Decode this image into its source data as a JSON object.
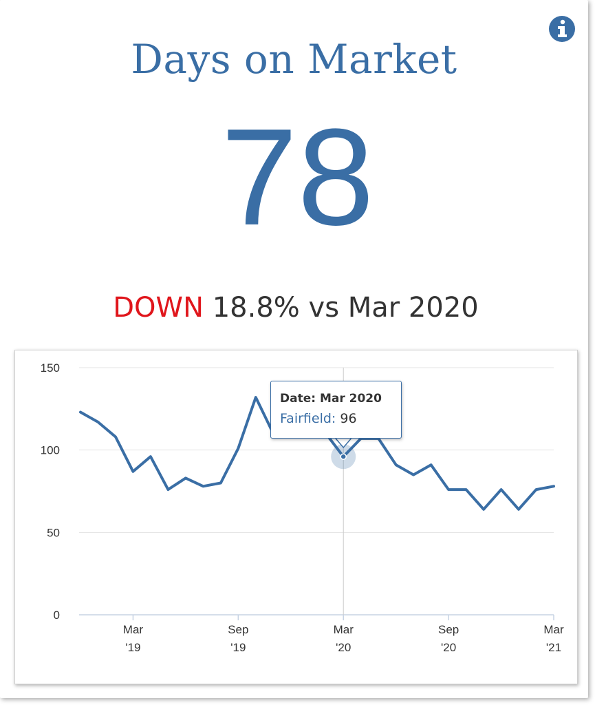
{
  "header": {
    "title": "Days on Market",
    "info_icon": "info-circle-icon"
  },
  "metric": {
    "value": "78",
    "direction": "DOWN",
    "change_text": "18.8% vs Mar 2020"
  },
  "colors": {
    "accent": "#3a6ea5",
    "down": "#e0161c",
    "text": "#333333",
    "grid": "#e3e3e3"
  },
  "tooltip": {
    "date_label": "Date: Mar 2020",
    "series_label": "Fairfield:",
    "value": "96"
  },
  "chart_data": {
    "type": "line",
    "x_tick_labels": [
      {
        "month": "Mar",
        "year": "'19"
      },
      {
        "month": "Sep",
        "year": "'19"
      },
      {
        "month": "Mar",
        "year": "'20"
      },
      {
        "month": "Sep",
        "year": "'20"
      },
      {
        "month": "Mar",
        "year": "'21"
      }
    ],
    "x_ticks": [
      "2019-03",
      "2019-09",
      "2020-03",
      "2020-09",
      "2021-03"
    ],
    "y_ticks": [
      0,
      50,
      100,
      150
    ],
    "ylim": [
      0,
      150
    ],
    "xlim": [
      "2018-12",
      "2021-03"
    ],
    "grid": true,
    "series": [
      {
        "name": "Fairfield",
        "x": [
          "2018-12",
          "2019-01",
          "2019-02",
          "2019-03",
          "2019-04",
          "2019-05",
          "2019-06",
          "2019-07",
          "2019-08",
          "2019-09",
          "2019-10",
          "2019-11",
          "2019-12",
          "2020-01",
          "2020-02",
          "2020-03",
          "2020-04",
          "2020-05",
          "2020-06",
          "2020-07",
          "2020-08",
          "2020-09",
          "2020-10",
          "2020-11",
          "2020-12",
          "2021-01",
          "2021-02",
          "2021-03"
        ],
        "values": [
          123,
          117,
          108,
          87,
          96,
          76,
          83,
          78,
          80,
          101,
          132,
          110,
          115,
          108,
          110,
          96,
          107,
          107,
          91,
          85,
          91,
          76,
          76,
          64,
          76,
          64,
          76,
          78
        ]
      }
    ],
    "highlight": {
      "x": "2020-03",
      "value": 96
    }
  }
}
